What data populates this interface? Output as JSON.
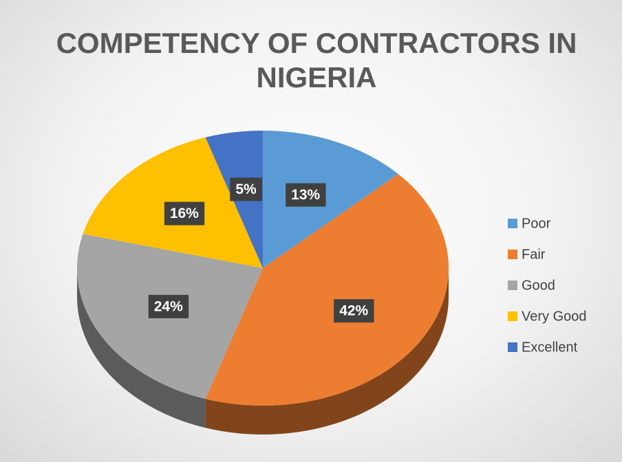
{
  "chart_data": {
    "type": "pie",
    "title": "COMPETENCY OF CONTRACTORS IN NIGERIA",
    "categories": [
      "Poor",
      "Fair",
      "Good",
      "Very Good",
      "Excellent"
    ],
    "values": [
      13,
      42,
      24,
      16,
      5
    ],
    "value_labels": [
      "13%",
      "42%",
      "24%",
      "16%",
      "5%"
    ],
    "colors": [
      "#5b9bd5",
      "#ed7d31",
      "#a5a5a5",
      "#ffc000",
      "#4472c4"
    ],
    "legend": "right"
  }
}
